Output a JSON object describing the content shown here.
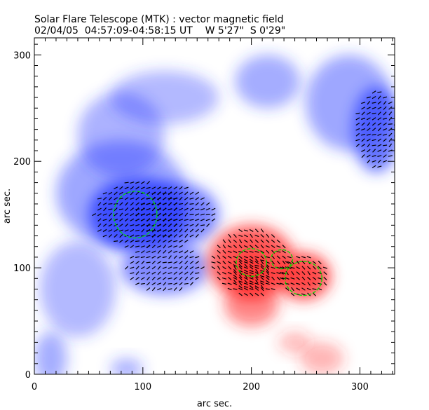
{
  "title": "Solar Flare Telescope (MTK) : vector magnetic field",
  "subtitle": "02/04/05  04:57:09-04:58:15 UT    W 5'27\"  S 0'29\"",
  "chart_data": {
    "type": "heatmap",
    "title": "Solar Flare Telescope (MTK) : vector magnetic field",
    "xlabel": "arc sec.",
    "ylabel": "arc sec.",
    "xlim": [
      0,
      332
    ],
    "ylim": [
      0,
      316
    ],
    "xticks": [
      "0",
      "100",
      "200",
      "300"
    ],
    "yticks": [
      "0",
      "100",
      "200",
      "300"
    ],
    "xtick_values": [
      0,
      100,
      200,
      300
    ],
    "ytick_values": [
      0,
      100,
      200,
      300
    ],
    "colors": {
      "negative": "#0000ff",
      "positive": "#ff0000",
      "contour": "#00e000",
      "vectors": "#000000"
    },
    "blobs": [
      {
        "x": 95,
        "y": 150,
        "rx": 45,
        "ry": 35,
        "polarity": "negative",
        "strength": 1.0
      },
      {
        "x": 130,
        "y": 150,
        "rx": 40,
        "ry": 30,
        "polarity": "negative",
        "strength": 0.7
      },
      {
        "x": 120,
        "y": 100,
        "rx": 40,
        "ry": 25,
        "polarity": "negative",
        "strength": 0.6
      },
      {
        "x": 80,
        "y": 170,
        "rx": 60,
        "ry": 50,
        "polarity": "negative",
        "strength": 0.35
      },
      {
        "x": 315,
        "y": 230,
        "rx": 22,
        "ry": 40,
        "polarity": "negative",
        "strength": 0.8
      },
      {
        "x": 290,
        "y": 255,
        "rx": 40,
        "ry": 45,
        "polarity": "negative",
        "strength": 0.35
      },
      {
        "x": 215,
        "y": 275,
        "rx": 30,
        "ry": 25,
        "polarity": "negative",
        "strength": 0.3
      },
      {
        "x": 80,
        "y": 225,
        "rx": 40,
        "ry": 40,
        "polarity": "negative",
        "strength": 0.25
      },
      {
        "x": 40,
        "y": 80,
        "rx": 35,
        "ry": 45,
        "polarity": "negative",
        "strength": 0.2
      },
      {
        "x": 15,
        "y": 15,
        "rx": 15,
        "ry": 25,
        "polarity": "negative",
        "strength": 0.3
      },
      {
        "x": 85,
        "y": 5,
        "rx": 15,
        "ry": 10,
        "polarity": "negative",
        "strength": 0.25
      },
      {
        "x": 120,
        "y": 260,
        "rx": 50,
        "ry": 25,
        "polarity": "negative",
        "strength": 0.2
      },
      {
        "x": 200,
        "y": 105,
        "rx": 40,
        "ry": 35,
        "polarity": "positive",
        "strength": 0.9
      },
      {
        "x": 248,
        "y": 92,
        "rx": 25,
        "ry": 22,
        "polarity": "positive",
        "strength": 1.0
      },
      {
        "x": 200,
        "y": 95,
        "rx": 20,
        "ry": 18,
        "polarity": "positive",
        "strength": 0.9
      },
      {
        "x": 200,
        "y": 65,
        "rx": 25,
        "ry": 20,
        "polarity": "positive",
        "strength": 0.5
      },
      {
        "x": 265,
        "y": 15,
        "rx": 20,
        "ry": 15,
        "polarity": "positive",
        "strength": 0.15
      },
      {
        "x": 240,
        "y": 30,
        "rx": 15,
        "ry": 10,
        "polarity": "positive",
        "strength": 0.12
      }
    ],
    "contours": [
      {
        "x": 93,
        "y": 150,
        "rx": 20,
        "ry": 22
      },
      {
        "x": 200,
        "y": 105,
        "rx": 14,
        "ry": 13
      },
      {
        "x": 228,
        "y": 108,
        "rx": 10,
        "ry": 9
      },
      {
        "x": 248,
        "y": 90,
        "rx": 17,
        "ry": 16
      }
    ]
  }
}
